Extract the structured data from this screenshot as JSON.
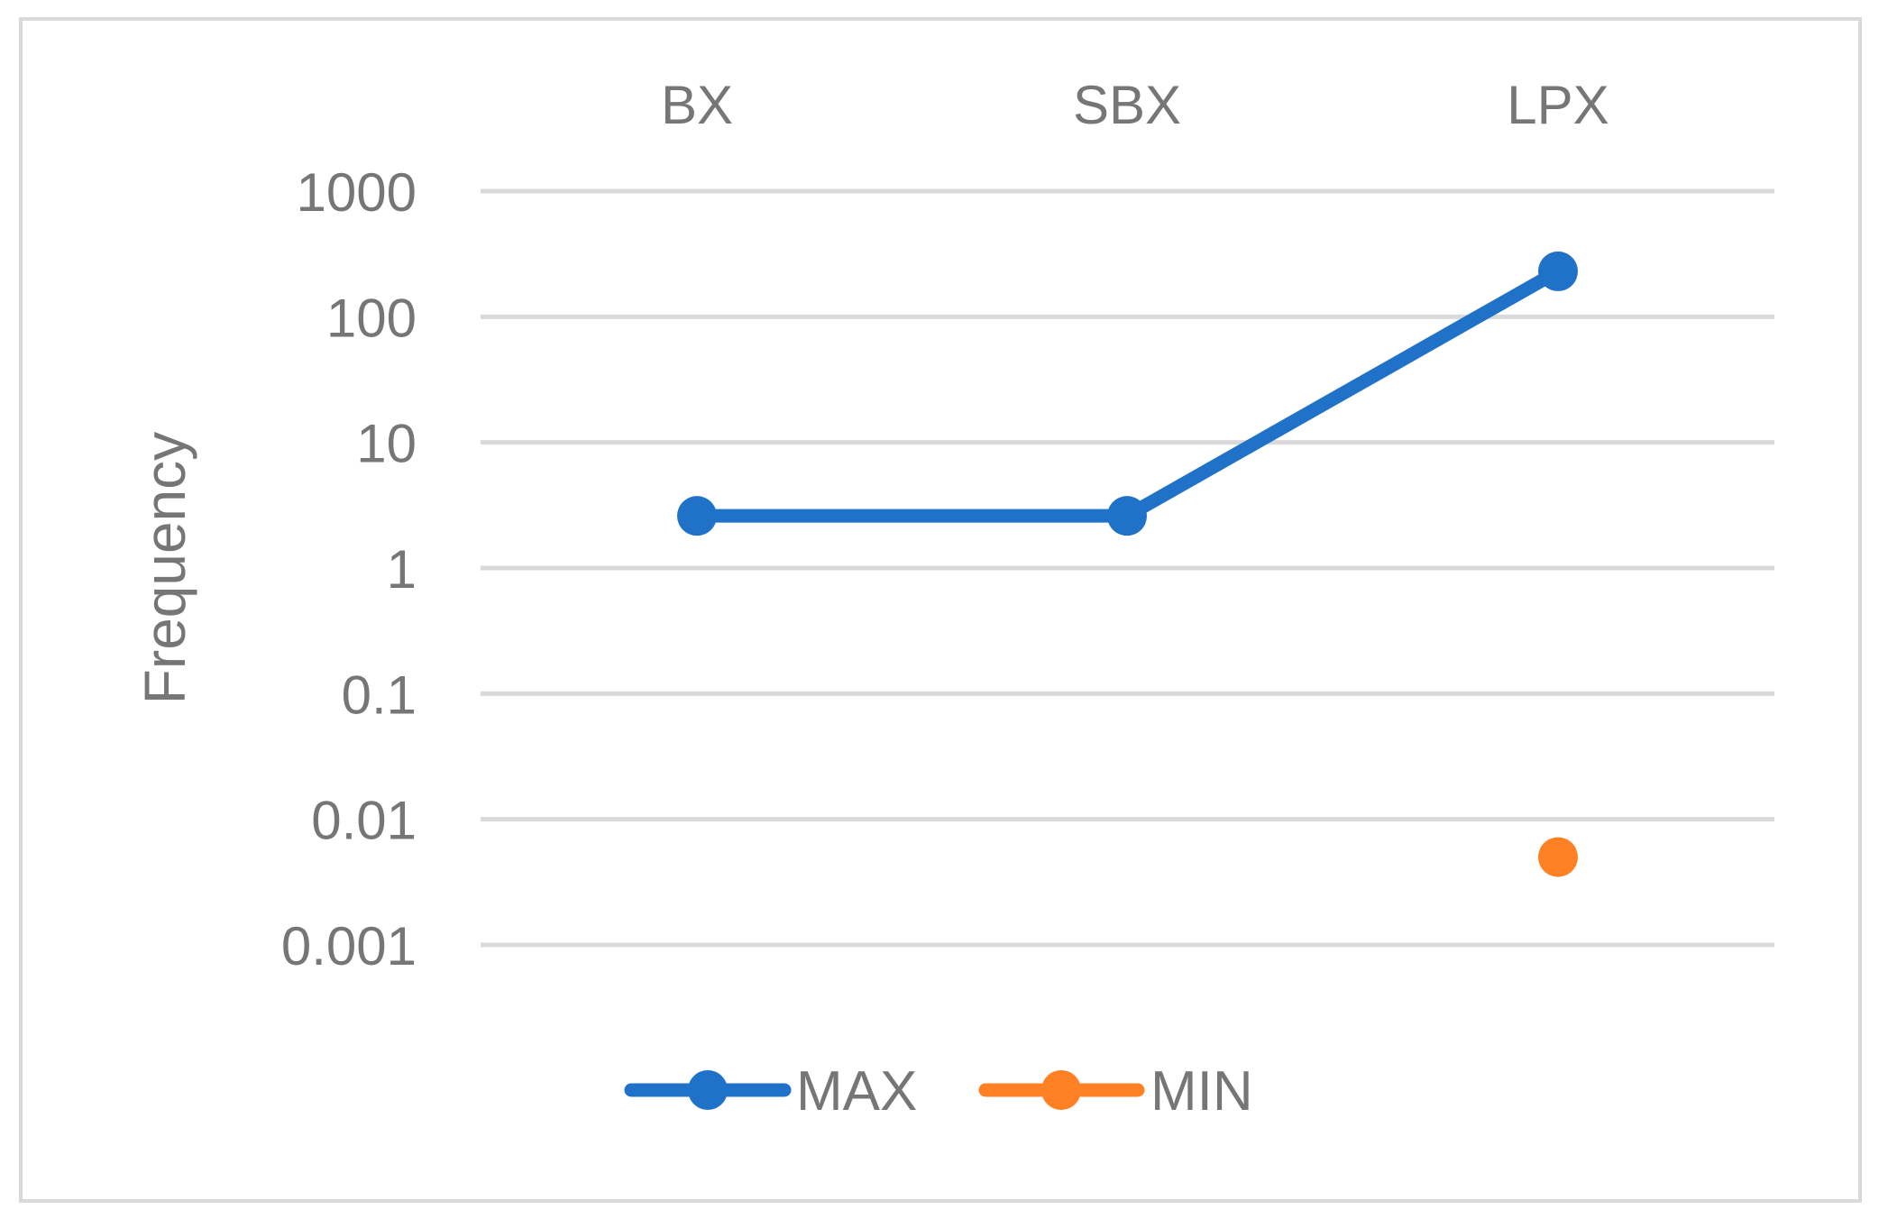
{
  "chart_data": {
    "type": "line",
    "categories": [
      "BX",
      "SBX",
      "LPX"
    ],
    "category_axis_position": "top",
    "ylabel": "Frequency",
    "yscale": "log",
    "ylim": [
      0.001,
      1000
    ],
    "yticks": [
      "1000",
      "100",
      "10",
      "1",
      "0.1",
      "0.01",
      "0.001"
    ],
    "grid": true,
    "legend_position": "bottom",
    "series": [
      {
        "name": "MAX",
        "color": "#1F72C8",
        "values": [
          2.6,
          2.6,
          230
        ]
      },
      {
        "name": "MIN",
        "color": "#FF8123",
        "values": [
          null,
          null,
          0.005
        ]
      }
    ]
  }
}
